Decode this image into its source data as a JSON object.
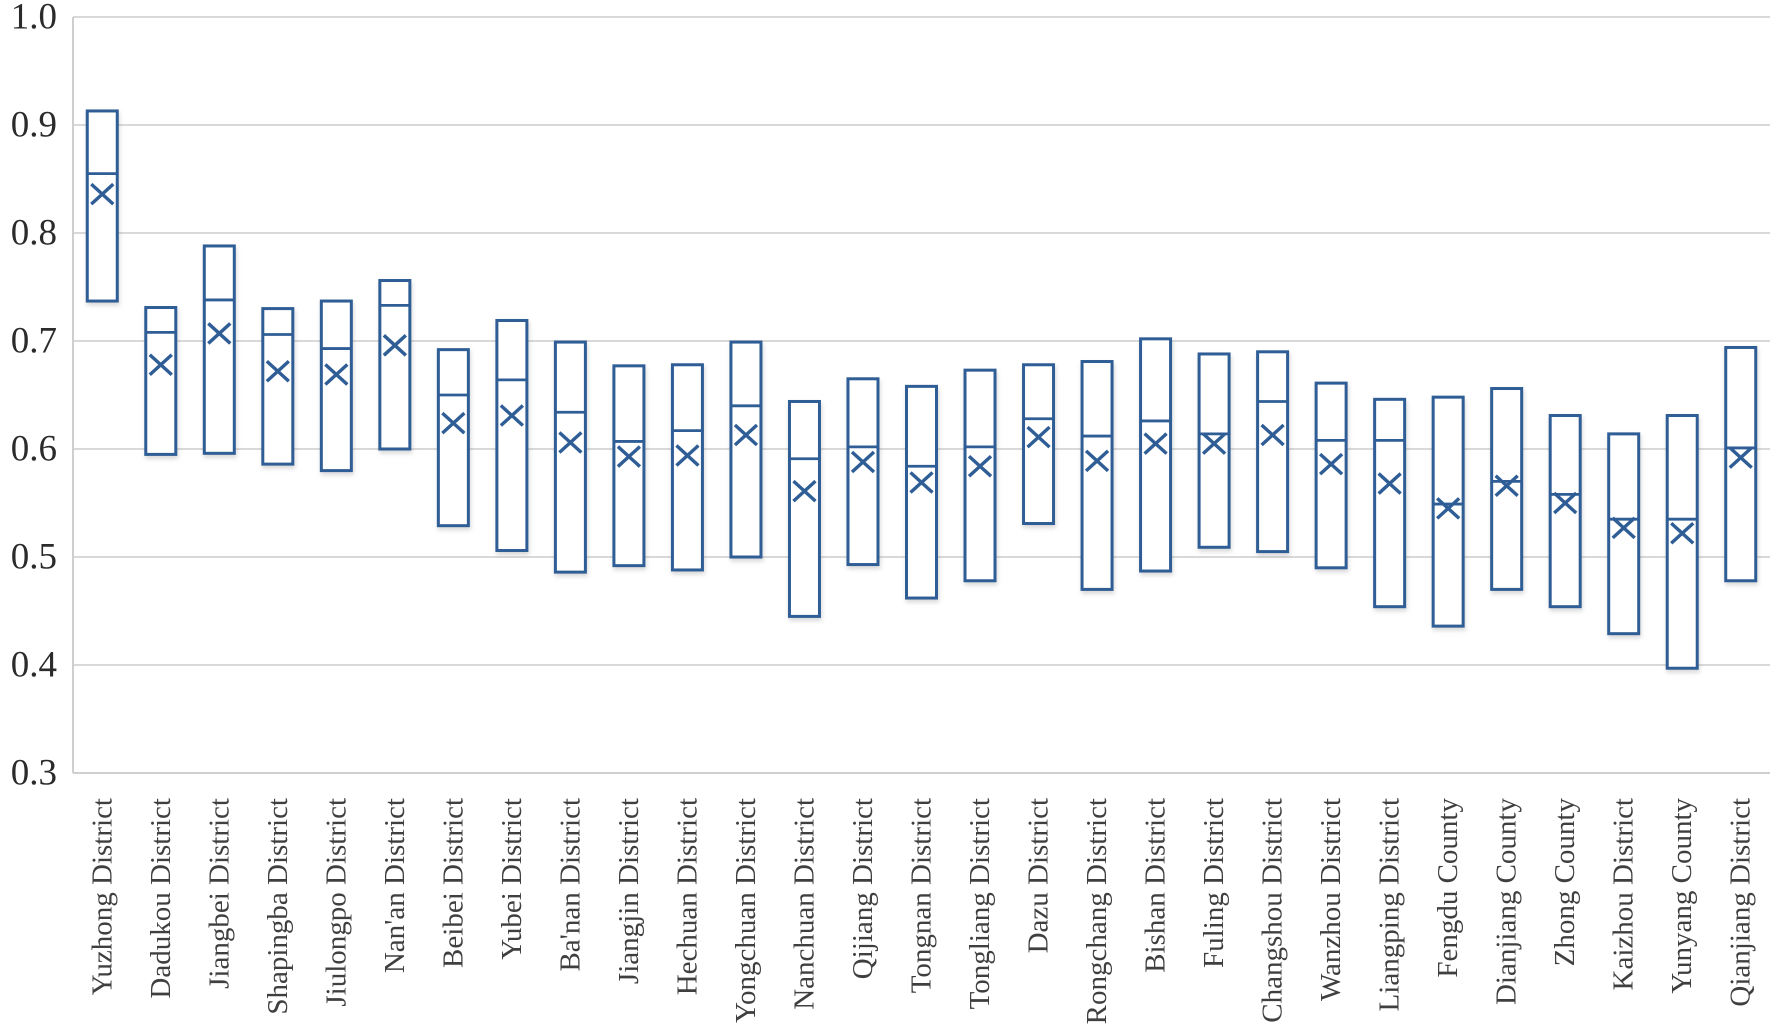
{
  "chart_data": {
    "type": "boxplot",
    "title": "",
    "xlabel": "",
    "ylabel": "",
    "ylim": [
      0.3,
      1.0
    ],
    "ytick_step": 0.1,
    "ytick_labels": [
      "1.0",
      "0.9",
      "0.8",
      "0.7",
      "0.6",
      "0.5",
      "0.4",
      "0.3"
    ],
    "grid": true,
    "legend_position": "none",
    "marker": "x-mean-marker",
    "categories": [
      "Yuzhong District",
      "Dadukou District",
      "Jiangbei District",
      "Shapingba District",
      "Jiulongpo District",
      "Nan'an District",
      "Beibei District",
      "Yubei District",
      "Ba'nan District",
      "Jiangjin District",
      "Hechuan District",
      "Yongchuan District",
      "Nanchuan District",
      "Qijiang District",
      "Tongnan District",
      "Tongliang District",
      "Dazu District",
      "Rongchang District",
      "Bishan District",
      "Fuling District",
      "Changshou District",
      "Wanzhou District",
      "Liangping District",
      "Fengdu County",
      "Dianjiang County",
      "Zhong County",
      "Kaizhou District",
      "Yunyang County",
      "Qianjiang District"
    ],
    "boxes": [
      {
        "label": "Yuzhong District",
        "q1": 0.737,
        "median": 0.855,
        "q3": 0.913,
        "mean": 0.836
      },
      {
        "label": "Dadukou District",
        "q1": 0.595,
        "median": 0.708,
        "q3": 0.731,
        "mean": 0.678
      },
      {
        "label": "Jiangbei District",
        "q1": 0.596,
        "median": 0.738,
        "q3": 0.788,
        "mean": 0.707
      },
      {
        "label": "Shapingba District",
        "q1": 0.586,
        "median": 0.706,
        "q3": 0.73,
        "mean": 0.672
      },
      {
        "label": "Jiulongpo District",
        "q1": 0.58,
        "median": 0.693,
        "q3": 0.737,
        "mean": 0.669
      },
      {
        "label": "Nan'an District",
        "q1": 0.6,
        "median": 0.733,
        "q3": 0.756,
        "mean": 0.696
      },
      {
        "label": "Beibei District",
        "q1": 0.529,
        "median": 0.65,
        "q3": 0.692,
        "mean": 0.624
      },
      {
        "label": "Yubei District",
        "q1": 0.506,
        "median": 0.664,
        "q3": 0.719,
        "mean": 0.631
      },
      {
        "label": "Ba'nan District",
        "q1": 0.486,
        "median": 0.634,
        "q3": 0.699,
        "mean": 0.606
      },
      {
        "label": "Jiangjin District",
        "q1": 0.492,
        "median": 0.607,
        "q3": 0.677,
        "mean": 0.593
      },
      {
        "label": "Hechuan District",
        "q1": 0.488,
        "median": 0.617,
        "q3": 0.678,
        "mean": 0.594
      },
      {
        "label": "Yongchuan District",
        "q1": 0.5,
        "median": 0.64,
        "q3": 0.699,
        "mean": 0.613
      },
      {
        "label": "Nanchuan District",
        "q1": 0.445,
        "median": 0.591,
        "q3": 0.644,
        "mean": 0.561
      },
      {
        "label": "Qijiang District",
        "q1": 0.493,
        "median": 0.602,
        "q3": 0.665,
        "mean": 0.588
      },
      {
        "label": "Tongnan District",
        "q1": 0.462,
        "median": 0.584,
        "q3": 0.658,
        "mean": 0.569
      },
      {
        "label": "Tongliang District",
        "q1": 0.478,
        "median": 0.602,
        "q3": 0.673,
        "mean": 0.584
      },
      {
        "label": "Dazu District",
        "q1": 0.531,
        "median": 0.628,
        "q3": 0.678,
        "mean": 0.611
      },
      {
        "label": "Rongchang District",
        "q1": 0.47,
        "median": 0.612,
        "q3": 0.681,
        "mean": 0.589
      },
      {
        "label": "Bishan District",
        "q1": 0.487,
        "median": 0.626,
        "q3": 0.702,
        "mean": 0.605
      },
      {
        "label": "Fuling District",
        "q1": 0.509,
        "median": 0.614,
        "q3": 0.688,
        "mean": 0.605
      },
      {
        "label": "Changshou District",
        "q1": 0.505,
        "median": 0.644,
        "q3": 0.69,
        "mean": 0.613
      },
      {
        "label": "Wanzhou District",
        "q1": 0.49,
        "median": 0.608,
        "q3": 0.661,
        "mean": 0.586
      },
      {
        "label": "Liangping District",
        "q1": 0.454,
        "median": 0.608,
        "q3": 0.646,
        "mean": 0.568
      },
      {
        "label": "Fengdu County",
        "q1": 0.436,
        "median": 0.549,
        "q3": 0.648,
        "mean": 0.545
      },
      {
        "label": "Dianjiang County",
        "q1": 0.47,
        "median": 0.57,
        "q3": 0.656,
        "mean": 0.566
      },
      {
        "label": "Zhong County",
        "q1": 0.454,
        "median": 0.558,
        "q3": 0.631,
        "mean": 0.55
      },
      {
        "label": "Kaizhou District",
        "q1": 0.429,
        "median": 0.535,
        "q3": 0.614,
        "mean": 0.527
      },
      {
        "label": "Yunyang County",
        "q1": 0.397,
        "median": 0.535,
        "q3": 0.631,
        "mean": 0.522
      },
      {
        "label": "Qianjiang District",
        "q1": 0.478,
        "median": 0.601,
        "q3": 0.694,
        "mean": 0.592
      }
    ],
    "colors": {
      "box_stroke": "#2f5d95",
      "mean_marker": "#2f5d95",
      "median_line": "#2f5d95",
      "box_fill": "#ffffff",
      "gridline": "#d9d9d9",
      "axis_line": "#cfcfcf",
      "ytick_text": "#2b2b2b",
      "category_text": "#3f3f3f",
      "background": "#ffffff"
    }
  }
}
